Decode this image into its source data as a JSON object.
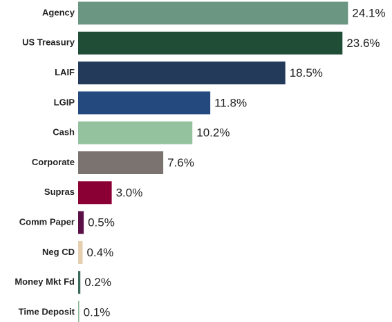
{
  "chart_data": {
    "type": "hbar",
    "categories": [
      "Agency",
      "US Treasury",
      "LAIF",
      "LGIP",
      "Cash",
      "Corporate",
      "Supras",
      "Comm Paper",
      "Neg CD",
      "Money Mkt Fd",
      "Time Deposit"
    ],
    "values": [
      24.1,
      23.6,
      18.5,
      11.8,
      10.2,
      7.6,
      3.0,
      0.5,
      0.4,
      0.2,
      0.1
    ],
    "value_labels": [
      "24.1%",
      "23.6%",
      "18.5%",
      "11.8%",
      "10.2%",
      "7.6%",
      "3.0%",
      "0.5%",
      "0.4%",
      "0.2%",
      "0.1%"
    ],
    "colors": [
      "#6b9682",
      "#1f4d35",
      "#233a5b",
      "#23497f",
      "#94c29f",
      "#7b7370",
      "#8b0034",
      "#5a1046",
      "#e4d0b0",
      "#3a6b5b",
      "#90b89b"
    ]
  }
}
